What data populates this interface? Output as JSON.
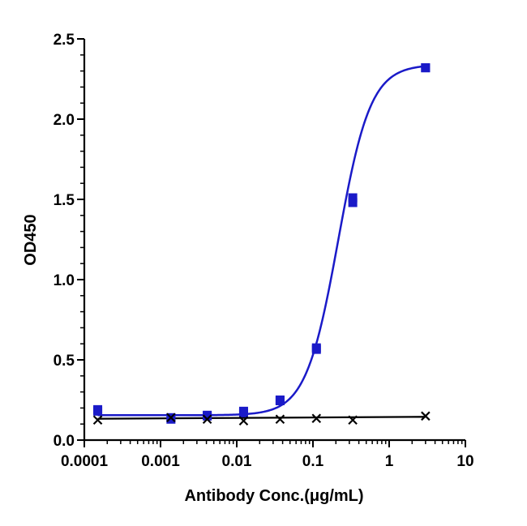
{
  "chart_data": {
    "type": "scatter",
    "xlabel": "Antibody Conc.(μg/mL)",
    "ylabel": "OD450",
    "xscale": "log",
    "xlim": [
      0.0001,
      10
    ],
    "ylim": [
      0,
      2.5
    ],
    "x_ticks": [
      {
        "value": 0.0001,
        "label": "0.0001"
      },
      {
        "value": 0.001,
        "label": "0.001"
      },
      {
        "value": 0.01,
        "label": "0.01"
      },
      {
        "value": 0.1,
        "label": "0.1"
      },
      {
        "value": 1,
        "label": "1"
      },
      {
        "value": 10,
        "label": "10"
      }
    ],
    "y_ticks": [
      {
        "value": 0,
        "label": "0.0"
      },
      {
        "value": 0.5,
        "label": "0.5"
      },
      {
        "value": 1.0,
        "label": "1.0"
      },
      {
        "value": 1.5,
        "label": "1.5"
      },
      {
        "value": 2.0,
        "label": "2.0"
      },
      {
        "value": 2.5,
        "label": "2.5"
      }
    ],
    "series": [
      {
        "color": "#1a1ac8",
        "marker": "square",
        "fit": "4PL",
        "points": [
          {
            "x": 0.00015,
            "y": 0.19
          },
          {
            "x": 0.00015,
            "y": 0.18
          },
          {
            "x": 0.00137,
            "y": 0.14
          },
          {
            "x": 0.00137,
            "y": 0.13
          },
          {
            "x": 0.0041,
            "y": 0.155
          },
          {
            "x": 0.0041,
            "y": 0.15
          },
          {
            "x": 0.0123,
            "y": 0.18
          },
          {
            "x": 0.0123,
            "y": 0.17
          },
          {
            "x": 0.037,
            "y": 0.25
          },
          {
            "x": 0.037,
            "y": 0.245
          },
          {
            "x": 0.111,
            "y": 0.575
          },
          {
            "x": 0.111,
            "y": 0.565
          },
          {
            "x": 0.333,
            "y": 1.51
          },
          {
            "x": 0.333,
            "y": 1.48
          },
          {
            "x": 3.0,
            "y": 2.32
          },
          {
            "x": 3.0,
            "y": 2.32
          }
        ]
      },
      {
        "color": "#000000",
        "marker": "cross",
        "fit": "linear",
        "points": [
          {
            "x": 0.00015,
            "y": 0.125
          },
          {
            "x": 0.00137,
            "y": 0.14
          },
          {
            "x": 0.0041,
            "y": 0.13
          },
          {
            "x": 0.0123,
            "y": 0.12
          },
          {
            "x": 0.037,
            "y": 0.13
          },
          {
            "x": 0.111,
            "y": 0.135
          },
          {
            "x": 0.333,
            "y": 0.125
          },
          {
            "x": 3.0,
            "y": 0.15
          }
        ]
      }
    ]
  }
}
